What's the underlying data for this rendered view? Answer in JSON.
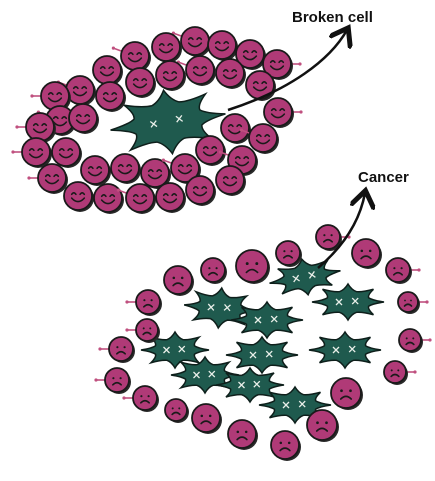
{
  "labels": {
    "broken_cell": "Broken cell",
    "cancer": "Cancer"
  },
  "colors": {
    "cell_fill": "#b03a77",
    "cell_outline": "#1a1a1a",
    "cell_shadow": "#2a2a2a",
    "damaged_cell_fill": "#1f5a4e",
    "damaged_cell_outline": "#0e1f1b",
    "connector": "#c0507f"
  },
  "icons": {
    "healthy_cell": "smiling-cell-icon",
    "sad_cell": "sad-cell-icon",
    "damaged_cell": "damaged-cell-icon"
  }
}
